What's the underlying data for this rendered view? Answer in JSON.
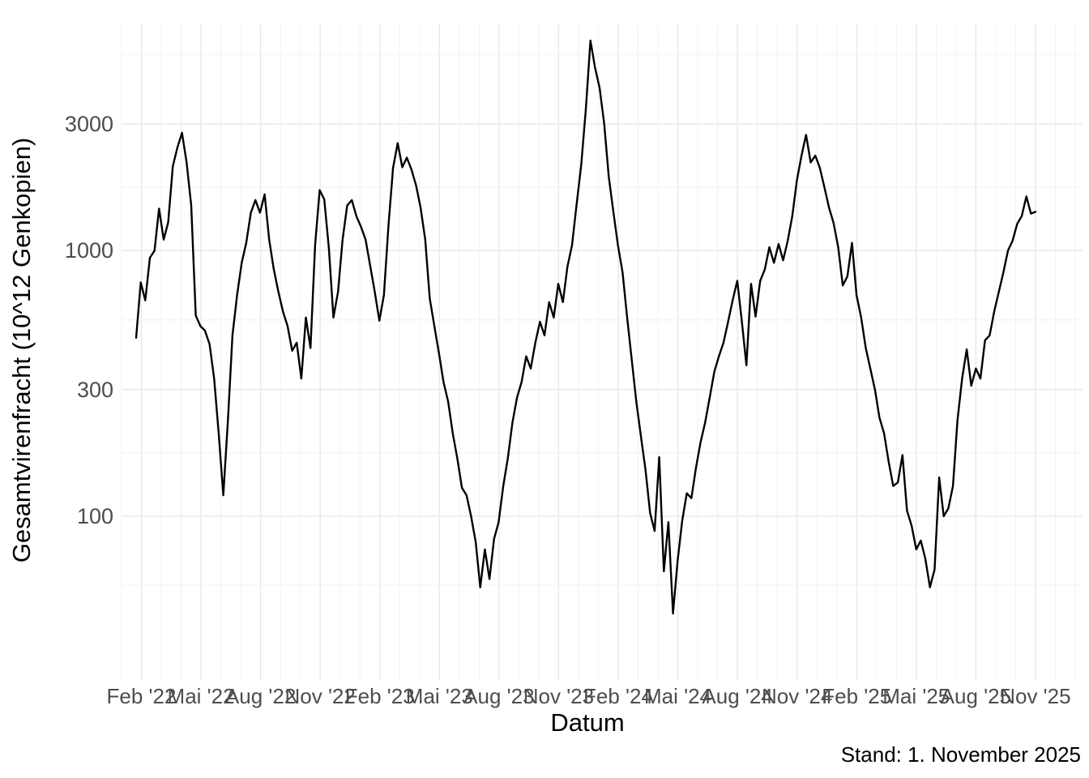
{
  "figure": {
    "kind": "time-series line chart, log y scale, minimal theme"
  },
  "y_axis": {
    "label": "Gesamtvirenfracht (10^12 Genkopien)",
    "tick_labels": [
      "3000",
      "1000",
      "300",
      "100"
    ],
    "tick_values": [
      3000,
      1000,
      300,
      100
    ]
  },
  "x_axis": {
    "label": "Datum",
    "tick_labels": [
      "Feb '22",
      "Mai '22",
      "Aug '22",
      "Nov '22",
      "Feb '23",
      "Mai '23",
      "Aug '23",
      "Nov '23",
      "Feb '24",
      "Mai '24",
      "Aug '24",
      "Nov '24",
      "Feb '25",
      "Mai '25",
      "Aug '25",
      "Nov '25"
    ]
  },
  "caption": "Stand: 1. November 2025",
  "colors": {
    "line": "#000000",
    "grid_major": "#e9e9e9",
    "grid_minor": "#f1f1f1",
    "tick_text": "#4d4d4d",
    "title_text": "#000000",
    "background": "#ffffff"
  },
  "chart_data": {
    "type": "line",
    "title": "",
    "xlabel": "Datum",
    "ylabel": "Gesamtvirenfracht (10^12 Genkopien)",
    "caption": "Stand: 1. November 2025",
    "y_scale": "log10",
    "ylim": [
      40,
      7100
    ],
    "y_major_gridlines": [
      100,
      300,
      1000,
      3000
    ],
    "y_minor_gridlines": [
      55,
      173,
      548,
      1732,
      5477
    ],
    "x_tick_labels": [
      "Feb '22",
      "Mai '22",
      "Aug '22",
      "Nov '22",
      "Feb '23",
      "Mai '23",
      "Aug '23",
      "Nov '23",
      "Feb '24",
      "Mai '24",
      "Aug '24",
      "Nov '24",
      "Feb '25",
      "Mai '25",
      "Aug '25",
      "Nov '25"
    ],
    "x_tick_interval_months": 3,
    "grid": true,
    "legend": "none",
    "series_name": "Gesamtvirenfracht",
    "x_start_date": "2022-01-24",
    "x_step": "weekly",
    "x_end_date": "2025-10-27",
    "values": [
      470,
      760,
      650,
      940,
      1000,
      1440,
      1100,
      1280,
      2080,
      2450,
      2780,
      2150,
      1480,
      570,
      520,
      500,
      445,
      330,
      205,
      120,
      230,
      480,
      680,
      900,
      1070,
      1390,
      1550,
      1390,
      1630,
      1100,
      850,
      700,
      590,
      520,
      420,
      450,
      330,
      560,
      430,
      1050,
      1690,
      1560,
      1020,
      560,
      700,
      1100,
      1480,
      1550,
      1350,
      1230,
      1100,
      880,
      700,
      545,
      680,
      1250,
      2050,
      2540,
      2060,
      2240,
      2020,
      1760,
      1450,
      1100,
      660,
      520,
      410,
      320,
      270,
      205,
      165,
      128,
      120,
      100,
      80,
      54,
      75,
      58,
      82,
      95,
      130,
      165,
      225,
      280,
      320,
      400,
      360,
      450,
      540,
      480,
      640,
      560,
      750,
      640,
      870,
      1050,
      1500,
      2100,
      3400,
      6180,
      4900,
      4100,
      3000,
      1900,
      1400,
      1050,
      830,
      560,
      390,
      270,
      200,
      150,
      103,
      88,
      167,
      62,
      95,
      43,
      68,
      96,
      122,
      117,
      152,
      190,
      225,
      280,
      350,
      400,
      450,
      540,
      650,
      770,
      540,
      370,
      750,
      565,
      770,
      850,
      1030,
      900,
      1060,
      920,
      1090,
      1350,
      1840,
      2280,
      2730,
      2150,
      2280,
      2050,
      1730,
      1450,
      1270,
      1030,
      740,
      800,
      1070,
      680,
      560,
      430,
      360,
      300,
      235,
      205,
      160,
      130,
      134,
      170,
      105,
      92,
      75,
      81,
      69,
      54,
      63,
      140,
      100,
      107,
      130,
      230,
      330,
      425,
      310,
      360,
      330,
      460,
      480,
      590,
      700,
      830,
      1000,
      1090,
      1260,
      1350,
      1600,
      1380,
      1400
    ]
  }
}
